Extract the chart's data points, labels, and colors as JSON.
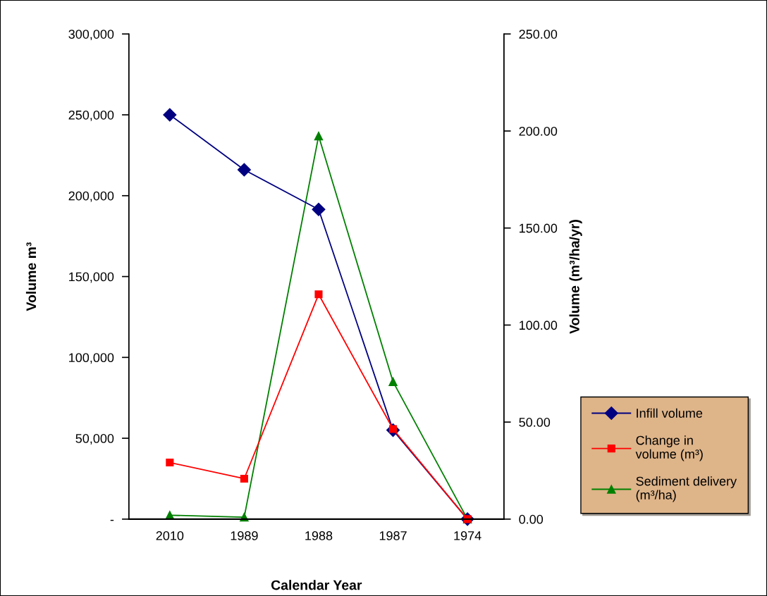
{
  "chart_data": {
    "type": "line",
    "xlabel": "Calendar Year",
    "ylabel": "Volume m³",
    "y2label": "Volume (m³/ha/yr)",
    "categories": [
      "2010",
      "1989",
      "1988",
      "1987",
      "1974"
    ],
    "series": [
      {
        "name": "Infill volume",
        "color": "#000080",
        "marker": "diamond",
        "values": [
          250000,
          216000,
          191500,
          55000,
          0
        ]
      },
      {
        "name": "Change in\nvolume (m³)",
        "color": "#ff0000",
        "marker": "square",
        "values": [
          35000,
          25000,
          139000,
          55700,
          0
        ]
      },
      {
        "name": "Sediment delivery\n(m³/ha)",
        "color": "#008000",
        "marker": "triangle",
        "axis": "y2",
        "values": [
          2,
          1,
          197.4,
          70.8,
          0
        ]
      }
    ],
    "ylim": [
      0,
      300000
    ],
    "yticks": [
      {
        "value": 0,
        "label": "-"
      },
      {
        "value": 50000,
        "label": "50,000"
      },
      {
        "value": 100000,
        "label": "100,000"
      },
      {
        "value": 150000,
        "label": "150,000"
      },
      {
        "value": 200000,
        "label": "200,000"
      },
      {
        "value": 250000,
        "label": "250,000"
      },
      {
        "value": 300000,
        "label": "300,000"
      }
    ],
    "y2lim": [
      0,
      250
    ],
    "y2ticks": [
      {
        "value": 0,
        "label": "0.00"
      },
      {
        "value": 50,
        "label": "50.00"
      },
      {
        "value": 100,
        "label": "100.00"
      },
      {
        "value": 150,
        "label": "150.00"
      },
      {
        "value": 200,
        "label": "200.00"
      },
      {
        "value": 250,
        "label": "250.00"
      }
    ],
    "grid": false,
    "legend": "right",
    "line_style": "solid"
  }
}
